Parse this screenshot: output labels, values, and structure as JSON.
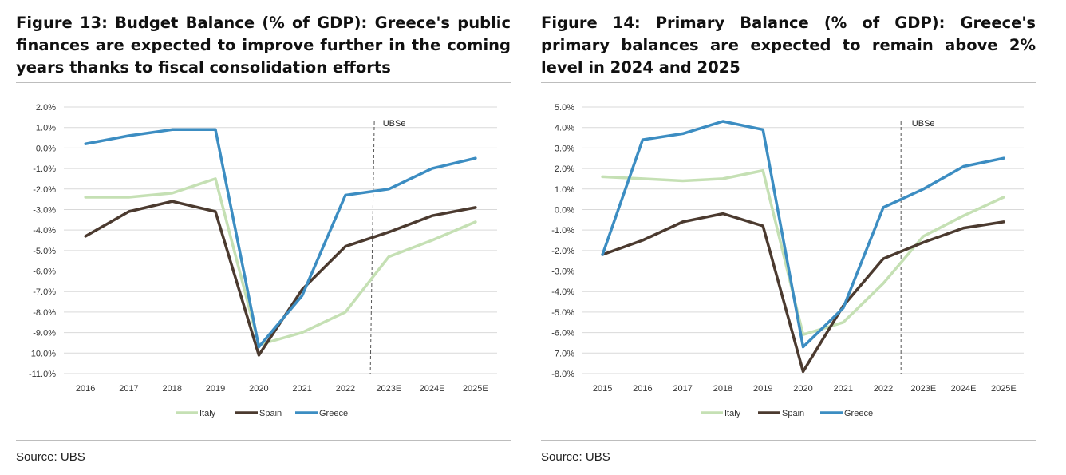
{
  "chart_data": [
    {
      "type": "line",
      "title": "Figure 13: Budget Balance (% of GDP): Greece's public finances are expected to improve further in the coming years thanks to fiscal consolidation efforts",
      "source": "Source: UBS",
      "x": [
        "2016",
        "2017",
        "2018",
        "2019",
        "2020",
        "2021",
        "2022",
        "2023E",
        "2024E",
        "2025E"
      ],
      "yticks": [
        "2.0%",
        "1.0%",
        "0.0%",
        "-1.0%",
        "-2.0%",
        "-3.0%",
        "-4.0%",
        "-5.0%",
        "-6.0%",
        "-7.0%",
        "-8.0%",
        "-9.0%",
        "-10.0%",
        "-11.0%"
      ],
      "ylim": [
        -11,
        2
      ],
      "grid": true,
      "legend": "bottom",
      "forecast_marker": {
        "after": "2022",
        "label": "UBSe"
      },
      "series": [
        {
          "name": "Italy",
          "color": "#c5e0b4",
          "values": [
            -2.4,
            -2.4,
            -2.2,
            -1.5,
            -9.6,
            -9.0,
            -8.0,
            -5.3,
            -4.5,
            -3.6
          ]
        },
        {
          "name": "Spain",
          "color": "#4b3a2f",
          "values": [
            -4.3,
            -3.1,
            -2.6,
            -3.1,
            -10.1,
            -6.9,
            -4.8,
            -4.1,
            -3.3,
            -2.9
          ]
        },
        {
          "name": "Greece",
          "color": "#3c8dc2",
          "values": [
            0.2,
            0.6,
            0.9,
            0.9,
            -9.7,
            -7.2,
            -2.3,
            -2.0,
            -1.0,
            -0.5
          ]
        }
      ]
    },
    {
      "type": "line",
      "title": "Figure 14: Primary Balance (% of GDP): Greece's primary balances are expected to remain above 2% level in 2024 and 2025",
      "source": "Source: UBS",
      "x": [
        "2015",
        "2016",
        "2017",
        "2018",
        "2019",
        "2020",
        "2021",
        "2022",
        "2023E",
        "2024E",
        "2025E"
      ],
      "yticks": [
        "5.0%",
        "4.0%",
        "3.0%",
        "2.0%",
        "1.0%",
        "0.0%",
        "-1.0%",
        "-2.0%",
        "-3.0%",
        "-4.0%",
        "-5.0%",
        "-6.0%",
        "-7.0%",
        "-8.0%"
      ],
      "ylim": [
        -8,
        5
      ],
      "grid": true,
      "legend": "bottom",
      "forecast_marker": {
        "after": "2022",
        "label": "UBSe"
      },
      "series": [
        {
          "name": "Italy",
          "color": "#c5e0b4",
          "values": [
            1.6,
            1.5,
            1.4,
            1.5,
            1.9,
            -6.1,
            -5.5,
            -3.6,
            -1.3,
            -0.3,
            0.6
          ]
        },
        {
          "name": "Spain",
          "color": "#4b3a2f",
          "values": [
            -2.2,
            -1.5,
            -0.6,
            -0.2,
            -0.8,
            -7.9,
            -4.7,
            -2.4,
            -1.6,
            -0.9,
            -0.6
          ]
        },
        {
          "name": "Greece",
          "color": "#3c8dc2",
          "values": [
            -2.2,
            3.4,
            3.7,
            4.3,
            3.9,
            -6.7,
            -4.8,
            0.1,
            1.0,
            2.1,
            2.5
          ]
        }
      ]
    }
  ]
}
